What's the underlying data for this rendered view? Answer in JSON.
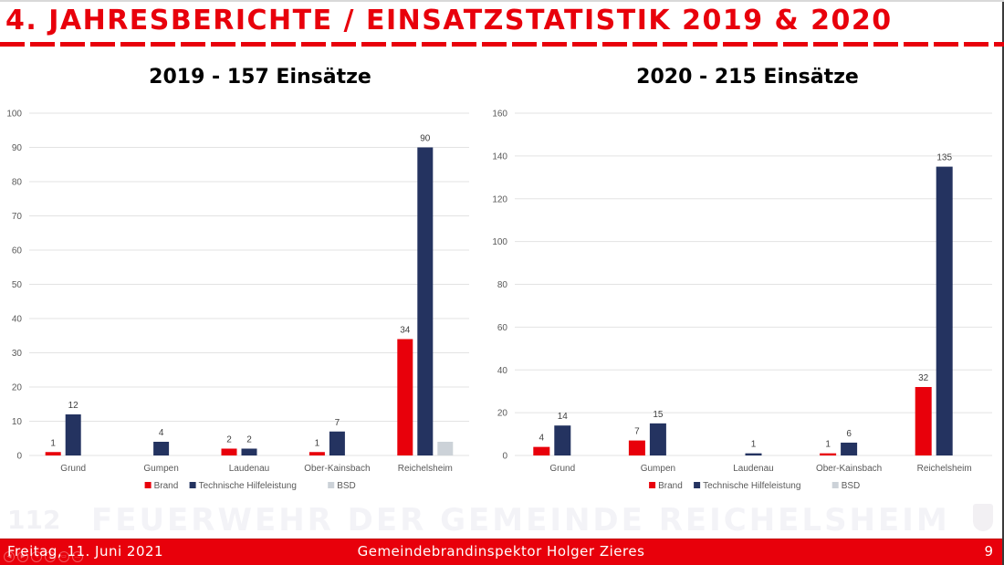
{
  "slide": {
    "title": "4. JAHRESBERICHTE / EINSATZSTATISTIK 2019 & 2020",
    "watermark": "FEUERWEHR DER GEMEINDE REICHELSHEIM",
    "watermark_logo": "112",
    "footer": {
      "date": "Freitag, 11. Juni 2021",
      "author": "Gemeindebrandinspektor Holger Zieres",
      "page": "9"
    },
    "player_controls": [
      {
        "name": "previous-icon",
        "glyph": "◀"
      },
      {
        "name": "next-icon",
        "glyph": "▶"
      },
      {
        "name": "pen-icon",
        "glyph": "✎"
      },
      {
        "name": "zoom-icon",
        "glyph": "⌕"
      },
      {
        "name": "subtitle-icon",
        "glyph": "▭"
      },
      {
        "name": "more-icon",
        "glyph": "…"
      }
    ]
  },
  "colors": {
    "accent": "#e8000b",
    "brand": "#e8000b",
    "technische_hilfeleistung": "#243360",
    "bsd": "#ccd2d8",
    "gridline": "#e3e3e3"
  },
  "chart_data": [
    {
      "id": "2019",
      "type": "bar",
      "title": "2019 - 157 Einsätze",
      "xlabel": "",
      "ylabel": "",
      "categories": [
        "Grund",
        "Gumpen",
        "Laudenau",
        "Ober-Kainsbach",
        "Reichelsheim"
      ],
      "series": [
        {
          "name": "Brand",
          "color": "#e8000b",
          "values": [
            1,
            0,
            2,
            1,
            34
          ],
          "labels": [
            "1",
            "",
            "2",
            "1",
            "34"
          ]
        },
        {
          "name": "Technische Hilfeleistung",
          "color": "#243360",
          "values": [
            12,
            4,
            2,
            7,
            90
          ],
          "labels": [
            "12",
            "4",
            "2",
            "7",
            "90"
          ]
        },
        {
          "name": "BSD",
          "color": "#ccd2d8",
          "values": [
            0,
            0,
            0,
            0,
            4
          ],
          "labels": [
            "",
            "",
            "",
            "",
            ""
          ]
        }
      ],
      "ylim": [
        0,
        100
      ],
      "yticks": [
        0,
        10,
        20,
        30,
        40,
        50,
        60,
        70,
        80,
        90,
        100
      ],
      "grid": true,
      "legend": "bottom"
    },
    {
      "id": "2020",
      "type": "bar",
      "title": "2020 - 215 Einsätze",
      "xlabel": "",
      "ylabel": "",
      "categories": [
        "Grund",
        "Gumpen",
        "Laudenau",
        "Ober-Kainsbach",
        "Reichelsheim"
      ],
      "series": [
        {
          "name": "Brand",
          "color": "#e8000b",
          "values": [
            4,
            7,
            0,
            1,
            32
          ],
          "labels": [
            "4",
            "7",
            "",
            "1",
            "32"
          ]
        },
        {
          "name": "Technische Hilfeleistung",
          "color": "#243360",
          "values": [
            14,
            15,
            1,
            6,
            135
          ],
          "labels": [
            "14",
            "15",
            "1",
            "6",
            "135"
          ]
        },
        {
          "name": "BSD",
          "color": "#ccd2d8",
          "values": [
            0,
            0,
            0,
            0,
            0
          ],
          "labels": [
            "",
            "",
            "",
            "",
            ""
          ]
        }
      ],
      "ylim": [
        0,
        160
      ],
      "yticks": [
        0,
        20,
        40,
        60,
        80,
        100,
        120,
        140,
        160
      ],
      "grid": true,
      "legend": "bottom"
    }
  ]
}
